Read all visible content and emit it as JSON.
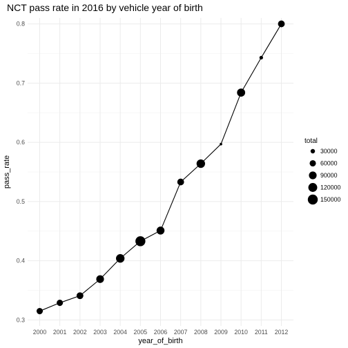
{
  "chart_data": {
    "type": "line",
    "title": "NCT pass rate in 2016 by vehicle year of birth",
    "xlabel": "year_of_birth",
    "ylabel": "pass_rate",
    "x": [
      2000,
      2001,
      2002,
      2003,
      2004,
      2005,
      2006,
      2007,
      2008,
      2009,
      2010,
      2011,
      2012
    ],
    "series": [
      {
        "values": [
          0.315,
          0.329,
          0.341,
          0.369,
          0.404,
          0.433,
          0.451,
          0.533,
          0.564,
          0.597,
          0.684,
          0.743,
          0.8
        ],
        "size_values": [
          60000,
          60000,
          70000,
          90000,
          110000,
          150000,
          95000,
          70000,
          110000,
          10000,
          100000,
          20000,
          70000
        ]
      }
    ],
    "xticks": [
      "2000",
      "2001",
      "2002",
      "2003",
      "2004",
      "2005",
      "2006",
      "2007",
      "2008",
      "2009",
      "2010",
      "2011",
      "2012"
    ],
    "yticks": [
      "0.3",
      "0.4",
      "0.5",
      "0.6",
      "0.7",
      "0.8"
    ],
    "ylim": [
      0.29,
      0.81
    ],
    "grid": true,
    "legend": {
      "title": "total",
      "placement": "right",
      "entries": [
        {
          "label": "30000",
          "value": 30000
        },
        {
          "label": "60000",
          "value": 60000
        },
        {
          "label": "90000",
          "value": 90000
        },
        {
          "label": "120000",
          "value": 120000
        },
        {
          "label": "150000",
          "value": 150000
        }
      ]
    },
    "colors": {
      "line": "#000000",
      "point": "#000000",
      "grid": "#ebebeb"
    }
  }
}
